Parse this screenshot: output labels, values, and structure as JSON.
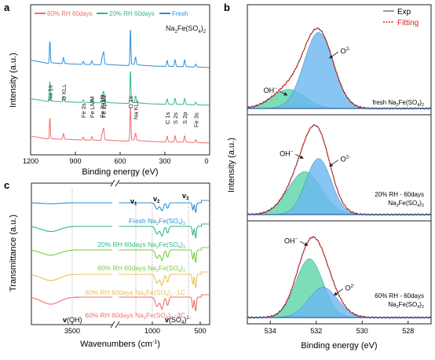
{
  "chart_data": [
    {
      "panel": "a",
      "type": "line",
      "legend": [
        {
          "name": "60%  RH 60days",
          "color": "#f06d6d"
        },
        {
          "name": "20% RH  60days",
          "color": "#2fba7f"
        },
        {
          "name": "Fresh",
          "color": "#2b8fd6"
        }
      ],
      "annotation": "Na2Fe(SO4)2",
      "xlabel": "Binding energy (eV)",
      "ylabel": "Intensity (a.u.)",
      "xlim": [
        1200,
        0
      ],
      "x_ticks": [
        "1200",
        "900",
        "600",
        "300",
        "0"
      ],
      "peak_labels": [
        "Na 1s",
        "O KLL",
        "Fe 2s",
        "Fe LMM",
        "Fe 2p1/2",
        "Fe 2p3/2",
        "O 1s",
        "Na KLL",
        "C 1s",
        "S 2s",
        "S 2p",
        "Fe 3s"
      ],
      "series": [
        {
          "name": "60%  RH 60days",
          "peaks_ev": [
            1071,
            980,
            847,
            790,
            720,
            711,
            531,
            497,
            285,
            232,
            168,
            93
          ]
        },
        {
          "name": "20% RH  60days",
          "peaks_ev": [
            1071,
            980,
            847,
            790,
            720,
            711,
            531,
            497,
            285,
            232,
            168,
            93
          ]
        },
        {
          "name": "Fresh",
          "peaks_ev": [
            1071,
            980,
            847,
            790,
            720,
            711,
            531,
            497,
            285,
            232,
            168,
            93
          ]
        }
      ]
    },
    {
      "panel": "b",
      "type": "line",
      "legend": [
        {
          "name": "Exp",
          "color": "#555555"
        },
        {
          "name": "Fitting",
          "color": "#e02020"
        }
      ],
      "xlabel": "Binding energy (eV)",
      "ylabel": "Intensity (a.u.)",
      "xlim": [
        535,
        527
      ],
      "x_ticks": [
        "534",
        "532",
        "530",
        "528"
      ],
      "subplots": [
        {
          "label": "fresh  Na2Fe(SO4)2",
          "components": [
            {
              "name": "OH-",
              "center_ev": 533.2,
              "fwhm_ev": 1.7,
              "height": 0.22
            },
            {
              "name": "O2-",
              "center_ev": 531.9,
              "fwhm_ev": 1.5,
              "height": 0.88
            }
          ]
        },
        {
          "label": "20% RH - 60days\nNa2Fe(SO4)2",
          "components": [
            {
              "name": "OH-",
              "center_ev": 532.5,
              "fwhm_ev": 1.7,
              "height": 0.52
            },
            {
              "name": "O2-",
              "center_ev": 531.9,
              "fwhm_ev": 1.3,
              "height": 0.68
            }
          ]
        },
        {
          "label": "60% RH - 60days\nNa2Fe(SO4)2",
          "components": [
            {
              "name": "OH-",
              "center_ev": 532.3,
              "fwhm_ev": 1.4,
              "height": 0.74
            },
            {
              "name": "O2-",
              "center_ev": 531.7,
              "fwhm_ev": 1.5,
              "height": 0.38
            }
          ]
        }
      ]
    },
    {
      "panel": "c",
      "type": "line",
      "xlabel": "Wavenumbers (cm-1)",
      "ylabel": "Transmittance (a.u.)",
      "x_ticks": [
        "3500",
        "1000",
        "500"
      ],
      "band_labels": [
        "v1",
        "v2",
        "v3",
        "v(OH)",
        "v(SO4)2-"
      ],
      "series": [
        {
          "name": "Fresh Na2Fe(SO4)2",
          "color": "#2b8fd6"
        },
        {
          "name": "20% RH 60days Na2Fe(SO4)2",
          "color": "#2fba7f"
        },
        {
          "name": "60% RH 60days Na2Fe(SO4)2",
          "color": "#7ac943"
        },
        {
          "name": "60% RH 60days Na2Fe(SO4)2 -1C",
          "color": "#e8c15a"
        },
        {
          "name": "60% RH 60days Na2Fe(SO4)2 -3C",
          "color": "#f06d6d"
        }
      ]
    }
  ],
  "panels": {
    "a": {
      "letter": "a",
      "legend_1": "60%  RH 60days",
      "legend_2": "20% RH  60days",
      "legend_3": "Fresh",
      "formula": "Na",
      "formula_sub1": "2",
      "formula_mid": "Fe(SO",
      "formula_sub2": "4",
      "formula_end": ")",
      "formula_sub3": "2",
      "xlabel": "Binding energy (eV)",
      "ylabel": "Intensity (a.u.)",
      "ticks": [
        "1200",
        "900",
        "600",
        "300",
        "0"
      ]
    },
    "b": {
      "letter": "b",
      "legend_exp": "Exp",
      "legend_fit": "Fitting",
      "xlabel": "Binding energy (eV)",
      "ylabel": "Intensity (a.u.)",
      "ticks": [
        "534",
        "532",
        "530",
        "528"
      ]
    },
    "c": {
      "letter": "c",
      "xlabel": "Wavenumbers (cm",
      "xlabel_sup": "-1",
      "xlabel_end": ")",
      "ylabel": "Transmittance (a.u.)",
      "ticks": [
        "3500",
        "1000",
        "500"
      ],
      "voh": "v",
      "voh_rest": "(OH)",
      "vso4": "v",
      "vso4_rest": "(SO",
      "vso4_sub": "4",
      "vso4_end": ")",
      "vso4_sup": "2-",
      "v": "v"
    }
  }
}
